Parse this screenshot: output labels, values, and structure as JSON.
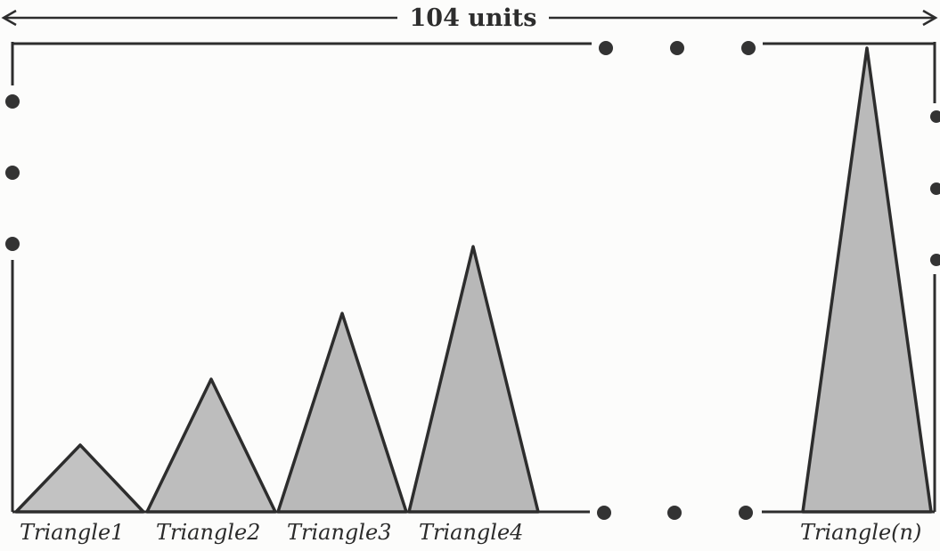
{
  "header": {
    "width_label": "104 units"
  },
  "triangles": [
    {
      "label": "Triangle1"
    },
    {
      "label": "Triangle2"
    },
    {
      "label": "Triangle3"
    },
    {
      "label": "Triangle4"
    },
    {
      "label": "Triangle(n)"
    }
  ],
  "colors": {
    "line": "#2d2d2d",
    "triangle_fill": "#bdbdbd",
    "background": "#fcfcfb"
  }
}
